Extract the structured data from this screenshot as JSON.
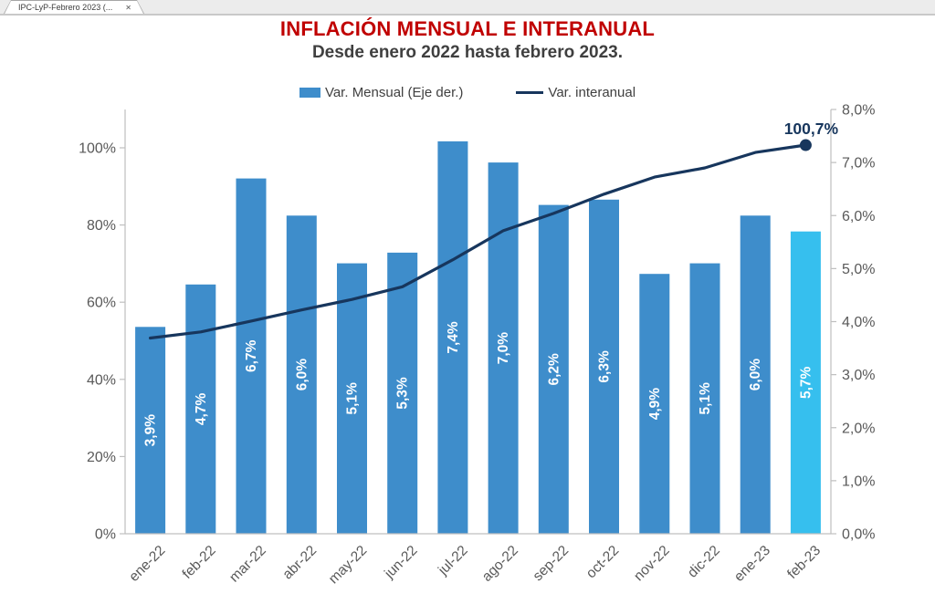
{
  "tab_bar": {
    "label": "IPC-LyP-Febrero 2023 (...",
    "close": "✕"
  },
  "header": {
    "title": "INFLACIÓN MENSUAL E INTERANUAL",
    "subtitle": "Desde enero 2022 hasta febrero 2023."
  },
  "legend": [
    {
      "label": "Var. Mensual (Eje der.)",
      "type": "bar"
    },
    {
      "label": "Var. interanual",
      "type": "line"
    }
  ],
  "colors": {
    "title_red": "#c00000",
    "subtitle_gray": "#3f3f3f",
    "bar_blue": "#3e8dcb",
    "bar_highlight_cyan": "#36bfee",
    "line_navy": "#17365d",
    "axis_text_gray": "#595959",
    "axis_line_gray": "#bfbfbf",
    "bar_label_white": "#ffffff"
  },
  "chart_data": {
    "type": "combo",
    "title": "INFLACIÓN MENSUAL E INTERANUAL",
    "subtitle": "Desde enero 2022 hasta febrero 2023.",
    "categories": [
      "ene-22",
      "feb-22",
      "mar-22",
      "abr-22",
      "may-22",
      "jun-22",
      "jul-22",
      "ago-22",
      "sep-22",
      "oct-22",
      "nov-22",
      "dic-22",
      "ene-23",
      "feb-23"
    ],
    "series": [
      {
        "name": "Var. Mensual (Eje der.)",
        "type": "bar",
        "axis": "right",
        "values": [
          3.9,
          4.7,
          6.7,
          6.0,
          5.1,
          5.3,
          7.4,
          7.0,
          6.2,
          6.3,
          4.9,
          5.1,
          6.0,
          5.7
        ],
        "labels": [
          "3,9%",
          "4,7%",
          "6,7%",
          "6,0%",
          "5,1%",
          "5,3%",
          "7,4%",
          "7,0%",
          "6,2%",
          "6,3%",
          "4,9%",
          "5,1%",
          "6,0%",
          "5,7%"
        ]
      },
      {
        "name": "Var. interanual",
        "type": "line",
        "axis": "left",
        "values": [
          50.7,
          52.3,
          55.1,
          58.0,
          60.7,
          64.0,
          71.0,
          78.5,
          83.0,
          88.0,
          92.4,
          94.8,
          98.8,
          100.7
        ]
      }
    ],
    "highlight_index": 13,
    "annotation": {
      "text": "100,7%",
      "index": 13
    },
    "left_axis": {
      "min": 0,
      "max": 110,
      "ticks": [
        {
          "value": 0,
          "label": "0%"
        },
        {
          "value": 20,
          "label": "20%"
        },
        {
          "value": 40,
          "label": "40%"
        },
        {
          "value": 60,
          "label": "60%"
        },
        {
          "value": 80,
          "label": "80%"
        },
        {
          "value": 100,
          "label": "100%"
        }
      ]
    },
    "right_axis": {
      "min": 0,
      "max": 8,
      "ticks": [
        {
          "value": 0,
          "label": "0,0%"
        },
        {
          "value": 1,
          "label": "1,0%"
        },
        {
          "value": 2,
          "label": "2,0%"
        },
        {
          "value": 3,
          "label": "3,0%"
        },
        {
          "value": 4,
          "label": "4,0%"
        },
        {
          "value": 5,
          "label": "5,0%"
        },
        {
          "value": 6,
          "label": "6,0%"
        },
        {
          "value": 7,
          "label": "7,0%"
        },
        {
          "value": 8,
          "label": "8,0%"
        }
      ]
    },
    "grid": false,
    "legend_position": "top"
  }
}
